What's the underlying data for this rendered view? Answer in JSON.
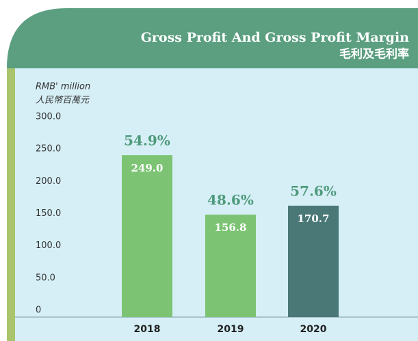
{
  "chart_data": {
    "type": "bar",
    "title": "Gross Profit And Gross Profit Margin",
    "subtitle": "毛利及毛利率",
    "y_label": "RMB' million",
    "y_label_zh": "人民幣百萬元",
    "categories": [
      "2018",
      "2019",
      "2020"
    ],
    "values": [
      249.0,
      156.8,
      170.7
    ],
    "value_labels": [
      "249.0",
      "156.8",
      "170.7"
    ],
    "colors": [
      "#7cc474",
      "#7cc474",
      "#4a7877"
    ],
    "margins": [
      54.9,
      48.6,
      57.6
    ],
    "margin_labels": [
      "54.9%",
      "48.6%",
      "57.6%"
    ],
    "ylim": [
      0,
      300
    ],
    "yticks": [
      0,
      {
        "value": 50,
        "label": "50.0"
      },
      {
        "value": 100,
        "label": "100.0"
      },
      {
        "value": 150,
        "label": "150.0"
      },
      {
        "value": 200,
        "label": "200.0"
      },
      {
        "value": 250,
        "label": "250.0"
      },
      {
        "value": 300,
        "label": "300.0"
      }
    ]
  }
}
